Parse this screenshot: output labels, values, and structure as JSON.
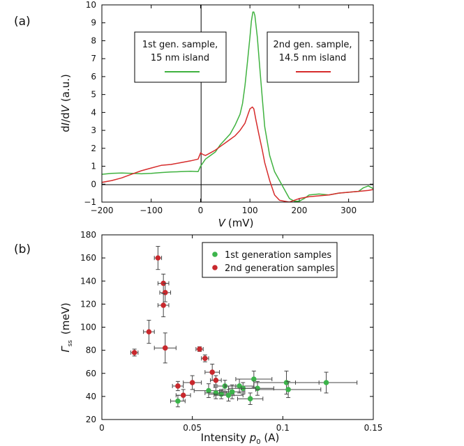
{
  "chart_data": [
    {
      "type": "line",
      "panel": "(a)",
      "xlabel": "V (mV)",
      "xlabel_parts": {
        "var": "V",
        "unit": "(mV)"
      },
      "ylabel": "dI/dV (a.u.)",
      "ylabel_parts": {
        "d1": "d",
        "v1": "I",
        "slash": "/d",
        "v2": "V",
        "unit": " (a.u.)"
      },
      "xlim": [
        -200,
        350
      ],
      "ylim": [
        -1,
        10
      ],
      "xticks": [
        -200,
        -100,
        0,
        100,
        200,
        300
      ],
      "xtick_labels": [
        "−200",
        "−100",
        "0",
        "100",
        "200",
        "300"
      ],
      "yticks": [
        -1,
        0,
        1,
        2,
        3,
        4,
        5,
        6,
        7,
        8,
        9,
        10
      ],
      "ytick_labels": [
        "−1",
        "0",
        "1",
        "2",
        "3",
        "4",
        "5",
        "6",
        "7",
        "8",
        "9",
        "10"
      ],
      "series": [
        {
          "name": "1st gen. sample, 15 nm island",
          "label_lines": [
            "1st gen. sample,",
            "15 nm island"
          ],
          "color": "#3fb23f",
          "x": [
            -200,
            -180,
            -160,
            -140,
            -120,
            -100,
            -80,
            -60,
            -40,
            -20,
            -5,
            0,
            5,
            10,
            20,
            30,
            40,
            50,
            60,
            70,
            80,
            85,
            90,
            95,
            100,
            103,
            106,
            108,
            110,
            115,
            120,
            125,
            130,
            140,
            150,
            160,
            170,
            180,
            190,
            200,
            210,
            220,
            240,
            260,
            280,
            300,
            320,
            330,
            340,
            350
          ],
          "values": [
            0.55,
            0.6,
            0.62,
            0.6,
            0.58,
            0.6,
            0.65,
            0.68,
            0.7,
            0.72,
            0.7,
            1.0,
            1.2,
            1.4,
            1.6,
            1.8,
            2.2,
            2.5,
            2.8,
            3.3,
            3.9,
            4.5,
            5.5,
            6.8,
            8.2,
            9.1,
            9.6,
            9.6,
            9.4,
            8.2,
            6.5,
            4.8,
            3.2,
            1.6,
            0.7,
            0.2,
            -0.3,
            -0.8,
            -0.95,
            -0.95,
            -0.8,
            -0.6,
            -0.55,
            -0.6,
            -0.5,
            -0.45,
            -0.4,
            -0.2,
            -0.1,
            -0.25
          ]
        },
        {
          "name": "2nd gen. sample, 14.5 nm island",
          "label_lines": [
            "2nd gen. sample,",
            "14.5 nm island"
          ],
          "color": "#d62b2b",
          "x": [
            -200,
            -180,
            -160,
            -140,
            -120,
            -100,
            -80,
            -60,
            -40,
            -20,
            -5,
            0,
            5,
            10,
            20,
            30,
            40,
            50,
            60,
            70,
            80,
            90,
            95,
            100,
            105,
            108,
            112,
            118,
            125,
            130,
            140,
            150,
            160,
            170,
            180,
            190,
            200,
            220,
            240,
            260,
            280,
            300,
            320,
            340,
            350
          ],
          "values": [
            0.1,
            0.2,
            0.35,
            0.55,
            0.75,
            0.9,
            1.05,
            1.1,
            1.2,
            1.3,
            1.4,
            1.75,
            1.65,
            1.6,
            1.75,
            1.9,
            2.1,
            2.3,
            2.5,
            2.7,
            3.0,
            3.4,
            3.8,
            4.2,
            4.3,
            4.2,
            3.6,
            2.8,
            1.9,
            1.2,
            0.2,
            -0.6,
            -0.9,
            -0.95,
            -1.0,
            -0.9,
            -0.8,
            -0.7,
            -0.65,
            -0.6,
            -0.5,
            -0.45,
            -0.4,
            -0.35,
            -0.3
          ]
        }
      ]
    },
    {
      "type": "scatter",
      "panel": "(b)",
      "xlabel": "Intensity p0 (A)",
      "xlabel_parts": {
        "pre": "Intensity ",
        "var": "p",
        "sub": "0",
        "unit": " (A)"
      },
      "ylabel": "Γss (meV)",
      "ylabel_parts": {
        "var": "Γ",
        "sub": "ss",
        "unit": " (meV)"
      },
      "xlim": [
        0,
        0.15
      ],
      "ylim": [
        20,
        180
      ],
      "xticks": [
        0,
        0.05,
        0.1,
        0.15
      ],
      "xtick_labels": [
        "0",
        "0.05",
        "0.1",
        "0.15"
      ],
      "yticks": [
        20,
        40,
        60,
        80,
        100,
        120,
        140,
        160,
        180
      ],
      "ytick_labels": [
        "20",
        "40",
        "60",
        "80",
        "100",
        "120",
        "140",
        "160",
        "180"
      ],
      "legend_position": "top-right",
      "series": [
        {
          "name": "1st generation samples",
          "color": "#3cb44b",
          "points": [
            {
              "x": 0.042,
              "y": 36,
              "xerr": 0.004,
              "yerr": 5
            },
            {
              "x": 0.059,
              "y": 45,
              "xerr": 0.008,
              "yerr": 6
            },
            {
              "x": 0.063,
              "y": 43,
              "xerr": 0.006,
              "yerr": 5
            },
            {
              "x": 0.066,
              "y": 42,
              "xerr": 0.007,
              "yerr": 4
            },
            {
              "x": 0.068,
              "y": 49,
              "xerr": 0.006,
              "yerr": 5
            },
            {
              "x": 0.07,
              "y": 41,
              "xerr": 0.008,
              "yerr": 5
            },
            {
              "x": 0.072,
              "y": 44,
              "xerr": 0.007,
              "yerr": 6
            },
            {
              "x": 0.076,
              "y": 49,
              "xerr": 0.008,
              "yerr": 6
            },
            {
              "x": 0.078,
              "y": 47,
              "xerr": 0.008,
              "yerr": 5
            },
            {
              "x": 0.082,
              "y": 38,
              "xerr": 0.007,
              "yerr": 5
            },
            {
              "x": 0.084,
              "y": 55,
              "xerr": 0.01,
              "yerr": 7
            },
            {
              "x": 0.086,
              "y": 47,
              "xerr": 0.009,
              "yerr": 6
            },
            {
              "x": 0.102,
              "y": 52,
              "xerr": 0.018,
              "yerr": 10
            },
            {
              "x": 0.103,
              "y": 46,
              "xerr": 0.018,
              "yerr": 7
            },
            {
              "x": 0.124,
              "y": 52,
              "xerr": 0.017,
              "yerr": 9
            }
          ]
        },
        {
          "name": "2nd generation samples",
          "color": "#c8282d",
          "points": [
            {
              "x": 0.018,
              "y": 78,
              "xerr": 0.002,
              "yerr": 3
            },
            {
              "x": 0.026,
              "y": 96,
              "xerr": 0.003,
              "yerr": 10
            },
            {
              "x": 0.031,
              "y": 160,
              "xerr": 0.002,
              "yerr": 10
            },
            {
              "x": 0.034,
              "y": 138,
              "xerr": 0.003,
              "yerr": 8
            },
            {
              "x": 0.035,
              "y": 130,
              "xerr": 0.003,
              "yerr": 8
            },
            {
              "x": 0.034,
              "y": 119,
              "xerr": 0.003,
              "yerr": 10
            },
            {
              "x": 0.035,
              "y": 82,
              "xerr": 0.006,
              "yerr": 13
            },
            {
              "x": 0.042,
              "y": 49,
              "xerr": 0.003,
              "yerr": 4
            },
            {
              "x": 0.045,
              "y": 41,
              "xerr": 0.004,
              "yerr": 5
            },
            {
              "x": 0.05,
              "y": 52,
              "xerr": 0.005,
              "yerr": 6
            },
            {
              "x": 0.054,
              "y": 81,
              "xerr": 0.002,
              "yerr": 2
            },
            {
              "x": 0.057,
              "y": 73,
              "xerr": 0.002,
              "yerr": 3
            },
            {
              "x": 0.061,
              "y": 61,
              "xerr": 0.004,
              "yerr": 7
            },
            {
              "x": 0.063,
              "y": 54,
              "xerr": 0.003,
              "yerr": 4
            }
          ]
        }
      ]
    }
  ]
}
